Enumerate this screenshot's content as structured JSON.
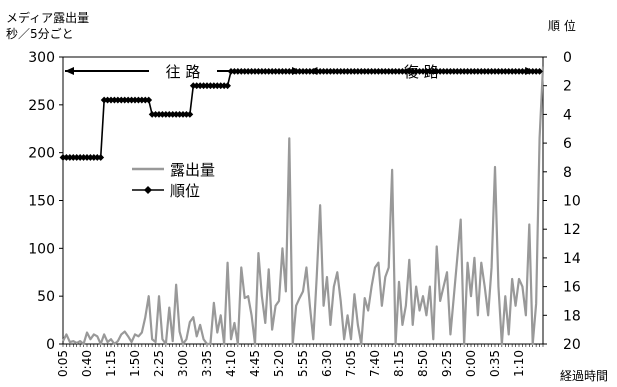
{
  "chart_data": {
    "type": "line",
    "y_left_label_line1": "メディア露出量",
    "y_left_label_line2": "秒／5分ごと",
    "y_right_label": "順 位",
    "x_label": "経過時間",
    "y_left_ticks": [
      "0",
      "50",
      "100",
      "150",
      "200",
      "250",
      "300"
    ],
    "y_left_range": [
      0,
      300
    ],
    "y_right_ticks": [
      "0",
      "2",
      "4",
      "6",
      "8",
      "10",
      "12",
      "14",
      "16",
      "18",
      "20"
    ],
    "y_right_range": [
      0,
      20
    ],
    "y_right_inverted": true,
    "x_tick_labels": [
      "0:05",
      "0:40",
      "1:15",
      "1:50",
      "2:25",
      "3:00",
      "3:35",
      "4:10",
      "4:45",
      "5:20",
      "5:55",
      "6:30",
      "7:05",
      "7:40",
      "8:15",
      "8:50",
      "9:25",
      "0:00",
      "0:35",
      "1:10"
    ],
    "segments": [
      {
        "label": "往 路",
        "from_index": 0,
        "to_index": 70
      },
      {
        "label": "復 路",
        "from_index": 71,
        "to_index": 138
      }
    ],
    "series": [
      {
        "name": "露出量",
        "axis": "left",
        "color": "#999999",
        "values": [
          3,
          10,
          2,
          3,
          1,
          3,
          0,
          12,
          5,
          10,
          8,
          0,
          10,
          2,
          5,
          0,
          3,
          10,
          13,
          8,
          2,
          10,
          8,
          12,
          28,
          50,
          5,
          2,
          50,
          5,
          0,
          38,
          3,
          62,
          13,
          0,
          5,
          23,
          28,
          8,
          20,
          5,
          0,
          0,
          43,
          12,
          30,
          0,
          85,
          5,
          22,
          0,
          80,
          48,
          50,
          30,
          0,
          95,
          50,
          22,
          78,
          15,
          40,
          45,
          100,
          55,
          215,
          0,
          40,
          48,
          55,
          80,
          40,
          5,
          70,
          145,
          40,
          70,
          20,
          60,
          75,
          45,
          5,
          30,
          5,
          52,
          20,
          0,
          48,
          35,
          60,
          80,
          85,
          40,
          70,
          80,
          182,
          0,
          65,
          20,
          40,
          88,
          20,
          60,
          35,
          50,
          30,
          60,
          5,
          102,
          45,
          60,
          75,
          10,
          50,
          90,
          130,
          0,
          85,
          50,
          90,
          30,
          85,
          60,
          30,
          80,
          185,
          60,
          0,
          50,
          10,
          68,
          40,
          68,
          60,
          30,
          125,
          0,
          42,
          215,
          290
        ]
      },
      {
        "name": "順位",
        "axis": "right",
        "color": "#000000",
        "marker": "diamond",
        "values": [
          7,
          7,
          7,
          7,
          7,
          7,
          7,
          7,
          7,
          7,
          7,
          7,
          3,
          3,
          3,
          3,
          3,
          3,
          3,
          3,
          3,
          3,
          3,
          3,
          3,
          3,
          4,
          4,
          4,
          4,
          4,
          4,
          4,
          4,
          4,
          4,
          4,
          4,
          2,
          2,
          2,
          2,
          2,
          2,
          2,
          2,
          2,
          2,
          2,
          1,
          1,
          1,
          1,
          1,
          1,
          1,
          1,
          1,
          1,
          1,
          1,
          1,
          1,
          1,
          1,
          1,
          1,
          1,
          1,
          1,
          1,
          1,
          1,
          1,
          1,
          1,
          1,
          1,
          1,
          1,
          1,
          1,
          1,
          1,
          1,
          1,
          1,
          1,
          1,
          1,
          1,
          1,
          1,
          1,
          1,
          1,
          1,
          1,
          1,
          1,
          1,
          1,
          1,
          1,
          1,
          1,
          1,
          1,
          1,
          1,
          1,
          1,
          1,
          1,
          1,
          1,
          1,
          1,
          1,
          1,
          1,
          1,
          1,
          1,
          1,
          1,
          1,
          1,
          1,
          1,
          1,
          1,
          1,
          1,
          1,
          1,
          1,
          1,
          1,
          1
        ]
      }
    ],
    "legend": "upper-left, inside plot",
    "grid": false
  }
}
